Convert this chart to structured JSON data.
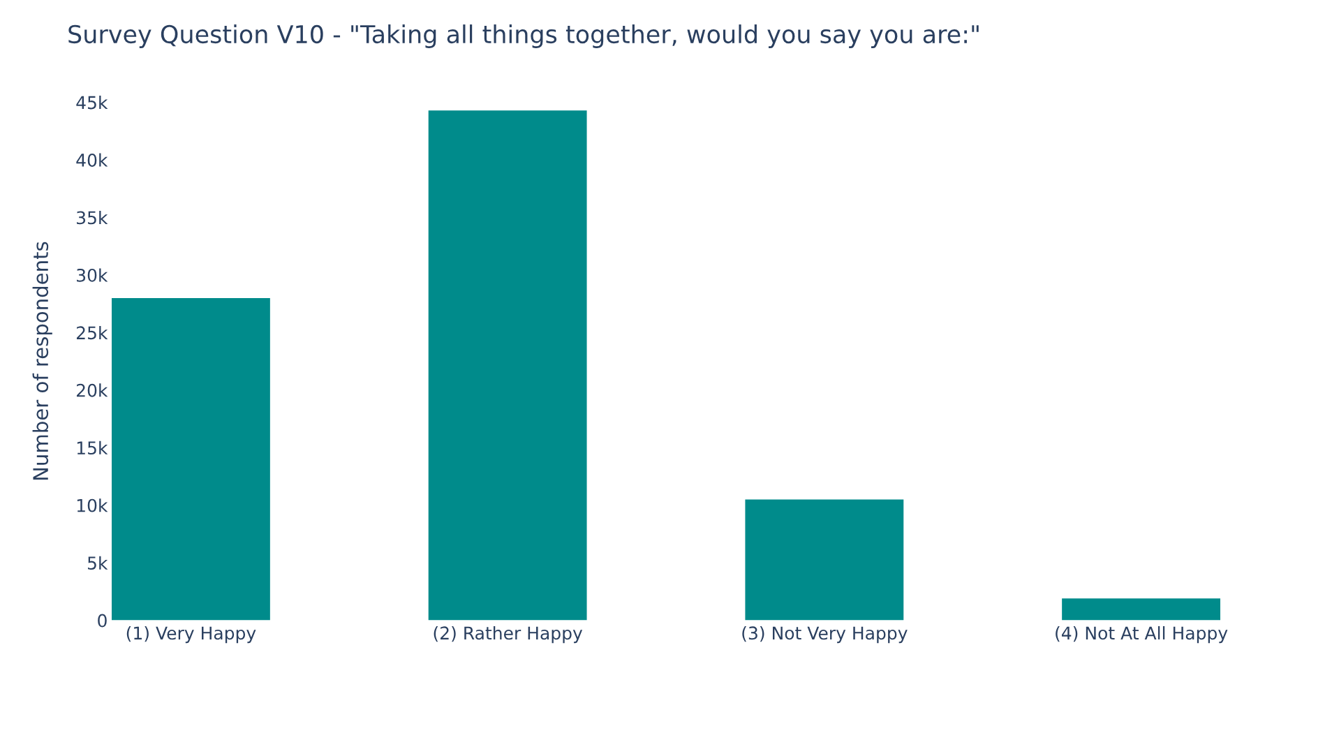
{
  "chart_data": {
    "type": "bar",
    "title": "Survey Question V10 - \"Taking all things together, would you say you are:\"",
    "ylabel": "Number of respondents",
    "categories": [
      "(1) Very Happy",
      "(2) Rather Happy",
      "(3) Not Very Happy",
      "(4) Not At All Happy"
    ],
    "values": [
      28000,
      44300,
      10500,
      1900
    ],
    "color": "#008b8b",
    "ylim": [
      0,
      45000
    ],
    "yticks": [
      0,
      {
        "value": 5000,
        "label": "5k"
      },
      {
        "value": 10000,
        "label": "10k"
      },
      {
        "value": 15000,
        "label": "15k"
      },
      {
        "value": 20000,
        "label": "20k"
      },
      {
        "value": 25000,
        "label": "25k"
      },
      {
        "value": 30000,
        "label": "30k"
      },
      {
        "value": 35000,
        "label": "35k"
      },
      {
        "value": 40000,
        "label": "40k"
      },
      {
        "value": 45000,
        "label": "45k"
      }
    ],
    "grid": false,
    "legend": false
  }
}
